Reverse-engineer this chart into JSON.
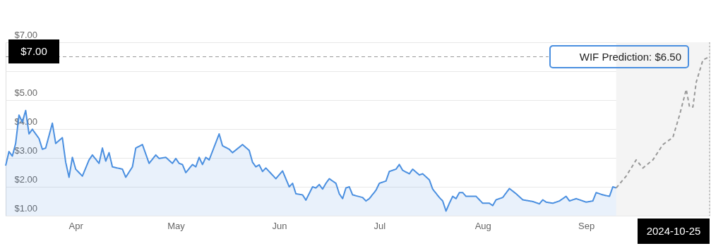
{
  "chart_data": {
    "type": "area",
    "xlim": [
      "2024-03-11",
      "2024-10-08"
    ],
    "xticks": [
      {
        "value": "2024-04-01",
        "label": "Apr"
      },
      {
        "value": "2024-05-01",
        "label": "May"
      },
      {
        "value": "2024-06-01",
        "label": "Jun"
      },
      {
        "value": "2024-07-01",
        "label": "Jul"
      },
      {
        "value": "2024-08-01",
        "label": "Aug"
      },
      {
        "value": "2024-09-01",
        "label": "Sep"
      }
    ],
    "ylim": [
      1,
      7
    ],
    "yticks": [
      {
        "value": 1,
        "label": "$1.00"
      },
      {
        "value": 2,
        "label": "$2.00"
      },
      {
        "value": 3,
        "label": "$3.00"
      },
      {
        "value": 4,
        "label": "$4.00"
      },
      {
        "value": 5,
        "label": "$5.00"
      },
      {
        "value": 6,
        "label": null
      },
      {
        "value": 7,
        "label": "$7.00"
      }
    ],
    "grid": "y",
    "legend": false,
    "series": [
      {
        "type": "area",
        "color": "#4a8fe0",
        "x": [
          "2024-03-11",
          "2024-03-12",
          "2024-03-13",
          "2024-03-14",
          "2024-03-15",
          "2024-03-16",
          "2024-03-17",
          "2024-03-18",
          "2024-03-19",
          "2024-03-21",
          "2024-03-22",
          "2024-03-23",
          "2024-03-25",
          "2024-03-26",
          "2024-03-28",
          "2024-03-29",
          "2024-03-30",
          "2024-03-31",
          "2024-04-01",
          "2024-04-03",
          "2024-04-05",
          "2024-04-06",
          "2024-04-08",
          "2024-04-09",
          "2024-04-10",
          "2024-04-11",
          "2024-04-12",
          "2024-04-15",
          "2024-04-16",
          "2024-04-18",
          "2024-04-19",
          "2024-04-21",
          "2024-04-23",
          "2024-04-25",
          "2024-04-26",
          "2024-04-28",
          "2024-04-30",
          "2024-05-01",
          "2024-05-02",
          "2024-05-03",
          "2024-05-04",
          "2024-05-06",
          "2024-05-07",
          "2024-05-08",
          "2024-05-09",
          "2024-05-10",
          "2024-05-11",
          "2024-05-14",
          "2024-05-15",
          "2024-05-17",
          "2024-05-18",
          "2024-05-21",
          "2024-05-23",
          "2024-05-24",
          "2024-05-25",
          "2024-05-26",
          "2024-05-27",
          "2024-05-28",
          "2024-05-31",
          "2024-06-02",
          "2024-06-04",
          "2024-06-05",
          "2024-06-06",
          "2024-06-08",
          "2024-06-09",
          "2024-06-11",
          "2024-06-12",
          "2024-06-13",
          "2024-06-14",
          "2024-06-15",
          "2024-06-16",
          "2024-06-18",
          "2024-06-19",
          "2024-06-20",
          "2024-06-21",
          "2024-06-22",
          "2024-06-23",
          "2024-06-26",
          "2024-06-27",
          "2024-06-28",
          "2024-06-30",
          "2024-07-01",
          "2024-07-03",
          "2024-07-04",
          "2024-07-06",
          "2024-07-07",
          "2024-07-08",
          "2024-07-10",
          "2024-07-11",
          "2024-07-13",
          "2024-07-14",
          "2024-07-16",
          "2024-07-17",
          "2024-07-19",
          "2024-07-20",
          "2024-07-21",
          "2024-07-22",
          "2024-07-23",
          "2024-07-24",
          "2024-07-25",
          "2024-07-26",
          "2024-07-27",
          "2024-07-29",
          "2024-07-30",
          "2024-08-01",
          "2024-08-03",
          "2024-08-04",
          "2024-08-05",
          "2024-08-07",
          "2024-08-09",
          "2024-08-11",
          "2024-08-13",
          "2024-08-16",
          "2024-08-18",
          "2024-08-19",
          "2024-08-20",
          "2024-08-22",
          "2024-08-24",
          "2024-08-26",
          "2024-08-27",
          "2024-08-29",
          "2024-09-01",
          "2024-09-03",
          "2024-09-04",
          "2024-09-06",
          "2024-09-08",
          "2024-09-09",
          "2024-09-10"
        ],
        "values": [
          2.73,
          3.22,
          3.06,
          3.5,
          4.48,
          4.24,
          4.64,
          3.83,
          3.99,
          3.67,
          3.3,
          3.34,
          4.2,
          3.5,
          3.7,
          2.85,
          2.33,
          3.02,
          2.61,
          2.37,
          2.93,
          3.1,
          2.81,
          3.34,
          2.89,
          3.18,
          2.69,
          2.61,
          2.33,
          2.69,
          3.34,
          3.46,
          2.81,
          3.1,
          2.98,
          3.02,
          2.81,
          2.98,
          2.81,
          2.77,
          2.49,
          2.77,
          2.69,
          3.02,
          2.77,
          3.02,
          2.93,
          3.83,
          3.42,
          3.3,
          3.18,
          3.46,
          3.26,
          2.85,
          2.69,
          2.76,
          2.53,
          2.65,
          2.28,
          2.55,
          2.0,
          2.12,
          1.76,
          1.72,
          1.54,
          2.0,
          1.96,
          2.08,
          1.92,
          2.12,
          2.28,
          2.12,
          1.76,
          1.59,
          1.96,
          2.0,
          1.72,
          1.63,
          1.51,
          1.59,
          1.88,
          2.12,
          2.2,
          2.53,
          2.61,
          2.77,
          2.57,
          2.45,
          2.61,
          2.41,
          2.45,
          2.24,
          1.92,
          1.63,
          1.51,
          1.16,
          1.43,
          1.67,
          1.59,
          1.8,
          1.8,
          1.67,
          1.67,
          1.67,
          1.43,
          1.43,
          1.35,
          1.55,
          1.63,
          1.94,
          1.76,
          1.55,
          1.49,
          1.41,
          1.55,
          1.47,
          1.43,
          1.51,
          1.67,
          1.51,
          1.59,
          1.47,
          1.51,
          1.8,
          1.72,
          1.67,
          2.0,
          1.96
        ]
      },
      {
        "type": "line",
        "color": "#999999",
        "line_style": "dashed",
        "x": [
          "2024-09-10",
          "2024-09-13",
          "2024-09-16",
          "2024-09-18",
          "2024-09-21",
          "2024-09-24",
          "2024-09-27",
          "2024-09-29",
          "2024-10-01",
          "2024-10-02",
          "2024-10-03",
          "2024-10-04",
          "2024-10-06",
          "2024-10-08"
        ],
        "values": [
          1.96,
          2.37,
          2.93,
          2.65,
          2.93,
          3.46,
          3.71,
          4.48,
          5.37,
          4.76,
          4.76,
          5.62,
          6.39,
          6.5
        ]
      }
    ],
    "bands": [
      {
        "axis": "x",
        "from": "2024-09-10",
        "to": "2024-10-08",
        "color": "#f4f4f4"
      }
    ],
    "ref_lines": [
      {
        "axis": "y",
        "value": 6.5,
        "color": "#999999",
        "line_style": "dashed"
      },
      {
        "axis": "x",
        "value": "2024-10-08",
        "color": "#999999",
        "line_style": "dotted"
      }
    ],
    "annotations": [
      "$7.00",
      {
        "text": "WIF Prediction: $6.50",
        "x": "2024-10-08",
        "y": 6.5
      },
      "2024-10-25"
    ]
  }
}
